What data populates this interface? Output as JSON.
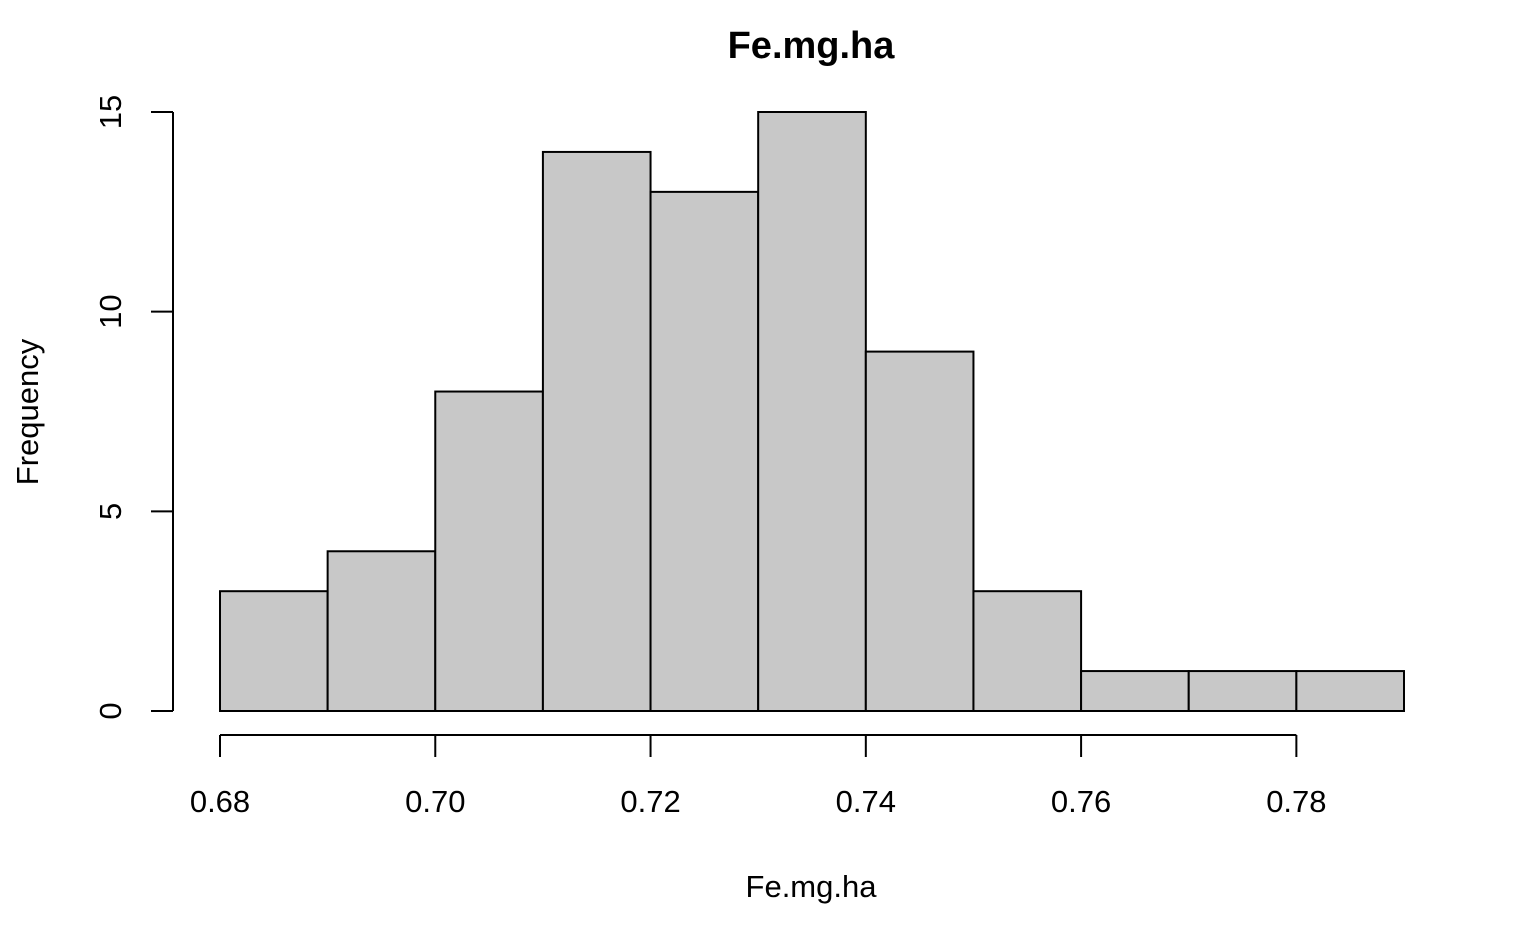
{
  "chart_data": {
    "type": "bar",
    "title": "Fe.mg.ha",
    "xlabel": "Fe.mg.ha",
    "ylabel": "Frequency",
    "bins": [
      {
        "start": 0.68,
        "end": 0.69,
        "count": 3
      },
      {
        "start": 0.69,
        "end": 0.7,
        "count": 4
      },
      {
        "start": 0.7,
        "end": 0.71,
        "count": 8
      },
      {
        "start": 0.71,
        "end": 0.72,
        "count": 14
      },
      {
        "start": 0.72,
        "end": 0.73,
        "count": 13
      },
      {
        "start": 0.73,
        "end": 0.74,
        "count": 15
      },
      {
        "start": 0.74,
        "end": 0.75,
        "count": 9
      },
      {
        "start": 0.75,
        "end": 0.76,
        "count": 3
      },
      {
        "start": 0.76,
        "end": 0.77,
        "count": 1
      },
      {
        "start": 0.77,
        "end": 0.78,
        "count": 1
      },
      {
        "start": 0.78,
        "end": 0.79,
        "count": 1
      }
    ],
    "xlim": [
      0.68,
      0.79
    ],
    "ylim": [
      0,
      15
    ],
    "x_ticks": [
      "0.68",
      "0.70",
      "0.72",
      "0.74",
      "0.76",
      "0.78"
    ],
    "y_ticks": [
      "0",
      "5",
      "10",
      "15"
    ],
    "grid": false,
    "bar_color": "#c8c8c8"
  }
}
